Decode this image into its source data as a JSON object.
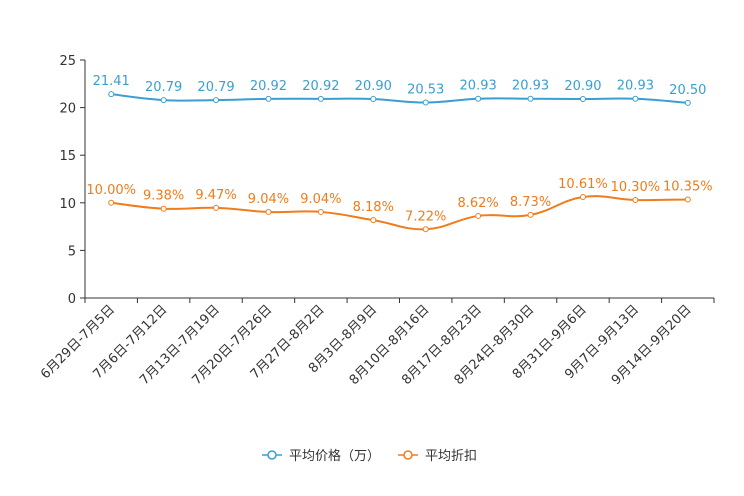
{
  "chart_data": {
    "type": "line",
    "categories": [
      "6月29日-7月5日",
      "7月6日-7月12日",
      "7月13日-7月19日",
      "7月20日-7月26日",
      "7月27日-8月2日",
      "8月3日-8月9日",
      "8月10日-8月16日",
      "8月17日-8月23日",
      "8月24日-8月30日",
      "8月31日-9月6日",
      "9月7日-9月13日",
      "9月14日-9月20日"
    ],
    "series": [
      {
        "name": "平均价格（万）",
        "color": "#3a9fd0",
        "values": [
          21.41,
          20.79,
          20.79,
          20.92,
          20.92,
          20.9,
          20.53,
          20.93,
          20.93,
          20.9,
          20.93,
          20.5
        ],
        "labels": [
          "21.41",
          "20.79",
          "20.79",
          "20.92",
          "20.92",
          "20.90",
          "20.53",
          "20.93",
          "20.93",
          "20.90",
          "20.93",
          "20.50"
        ]
      },
      {
        "name": "平均折扣",
        "color": "#f07c1c",
        "values": [
          10.0,
          9.38,
          9.47,
          9.04,
          9.04,
          8.18,
          7.22,
          8.62,
          8.73,
          10.61,
          10.3,
          10.35
        ],
        "labels": [
          "10.00%",
          "9.38%",
          "9.47%",
          "9.04%",
          "9.04%",
          "8.18%",
          "7.22%",
          "8.62%",
          "8.73%",
          "10.61%",
          "10.30%",
          "10.35%"
        ]
      }
    ],
    "y_ticks": [
      "0",
      "5",
      "10",
      "15",
      "20",
      "25"
    ],
    "ylim": [
      0,
      25
    ],
    "title": "",
    "xlabel": "",
    "ylabel": "",
    "legend_position": "bottom-center",
    "grid": false
  }
}
